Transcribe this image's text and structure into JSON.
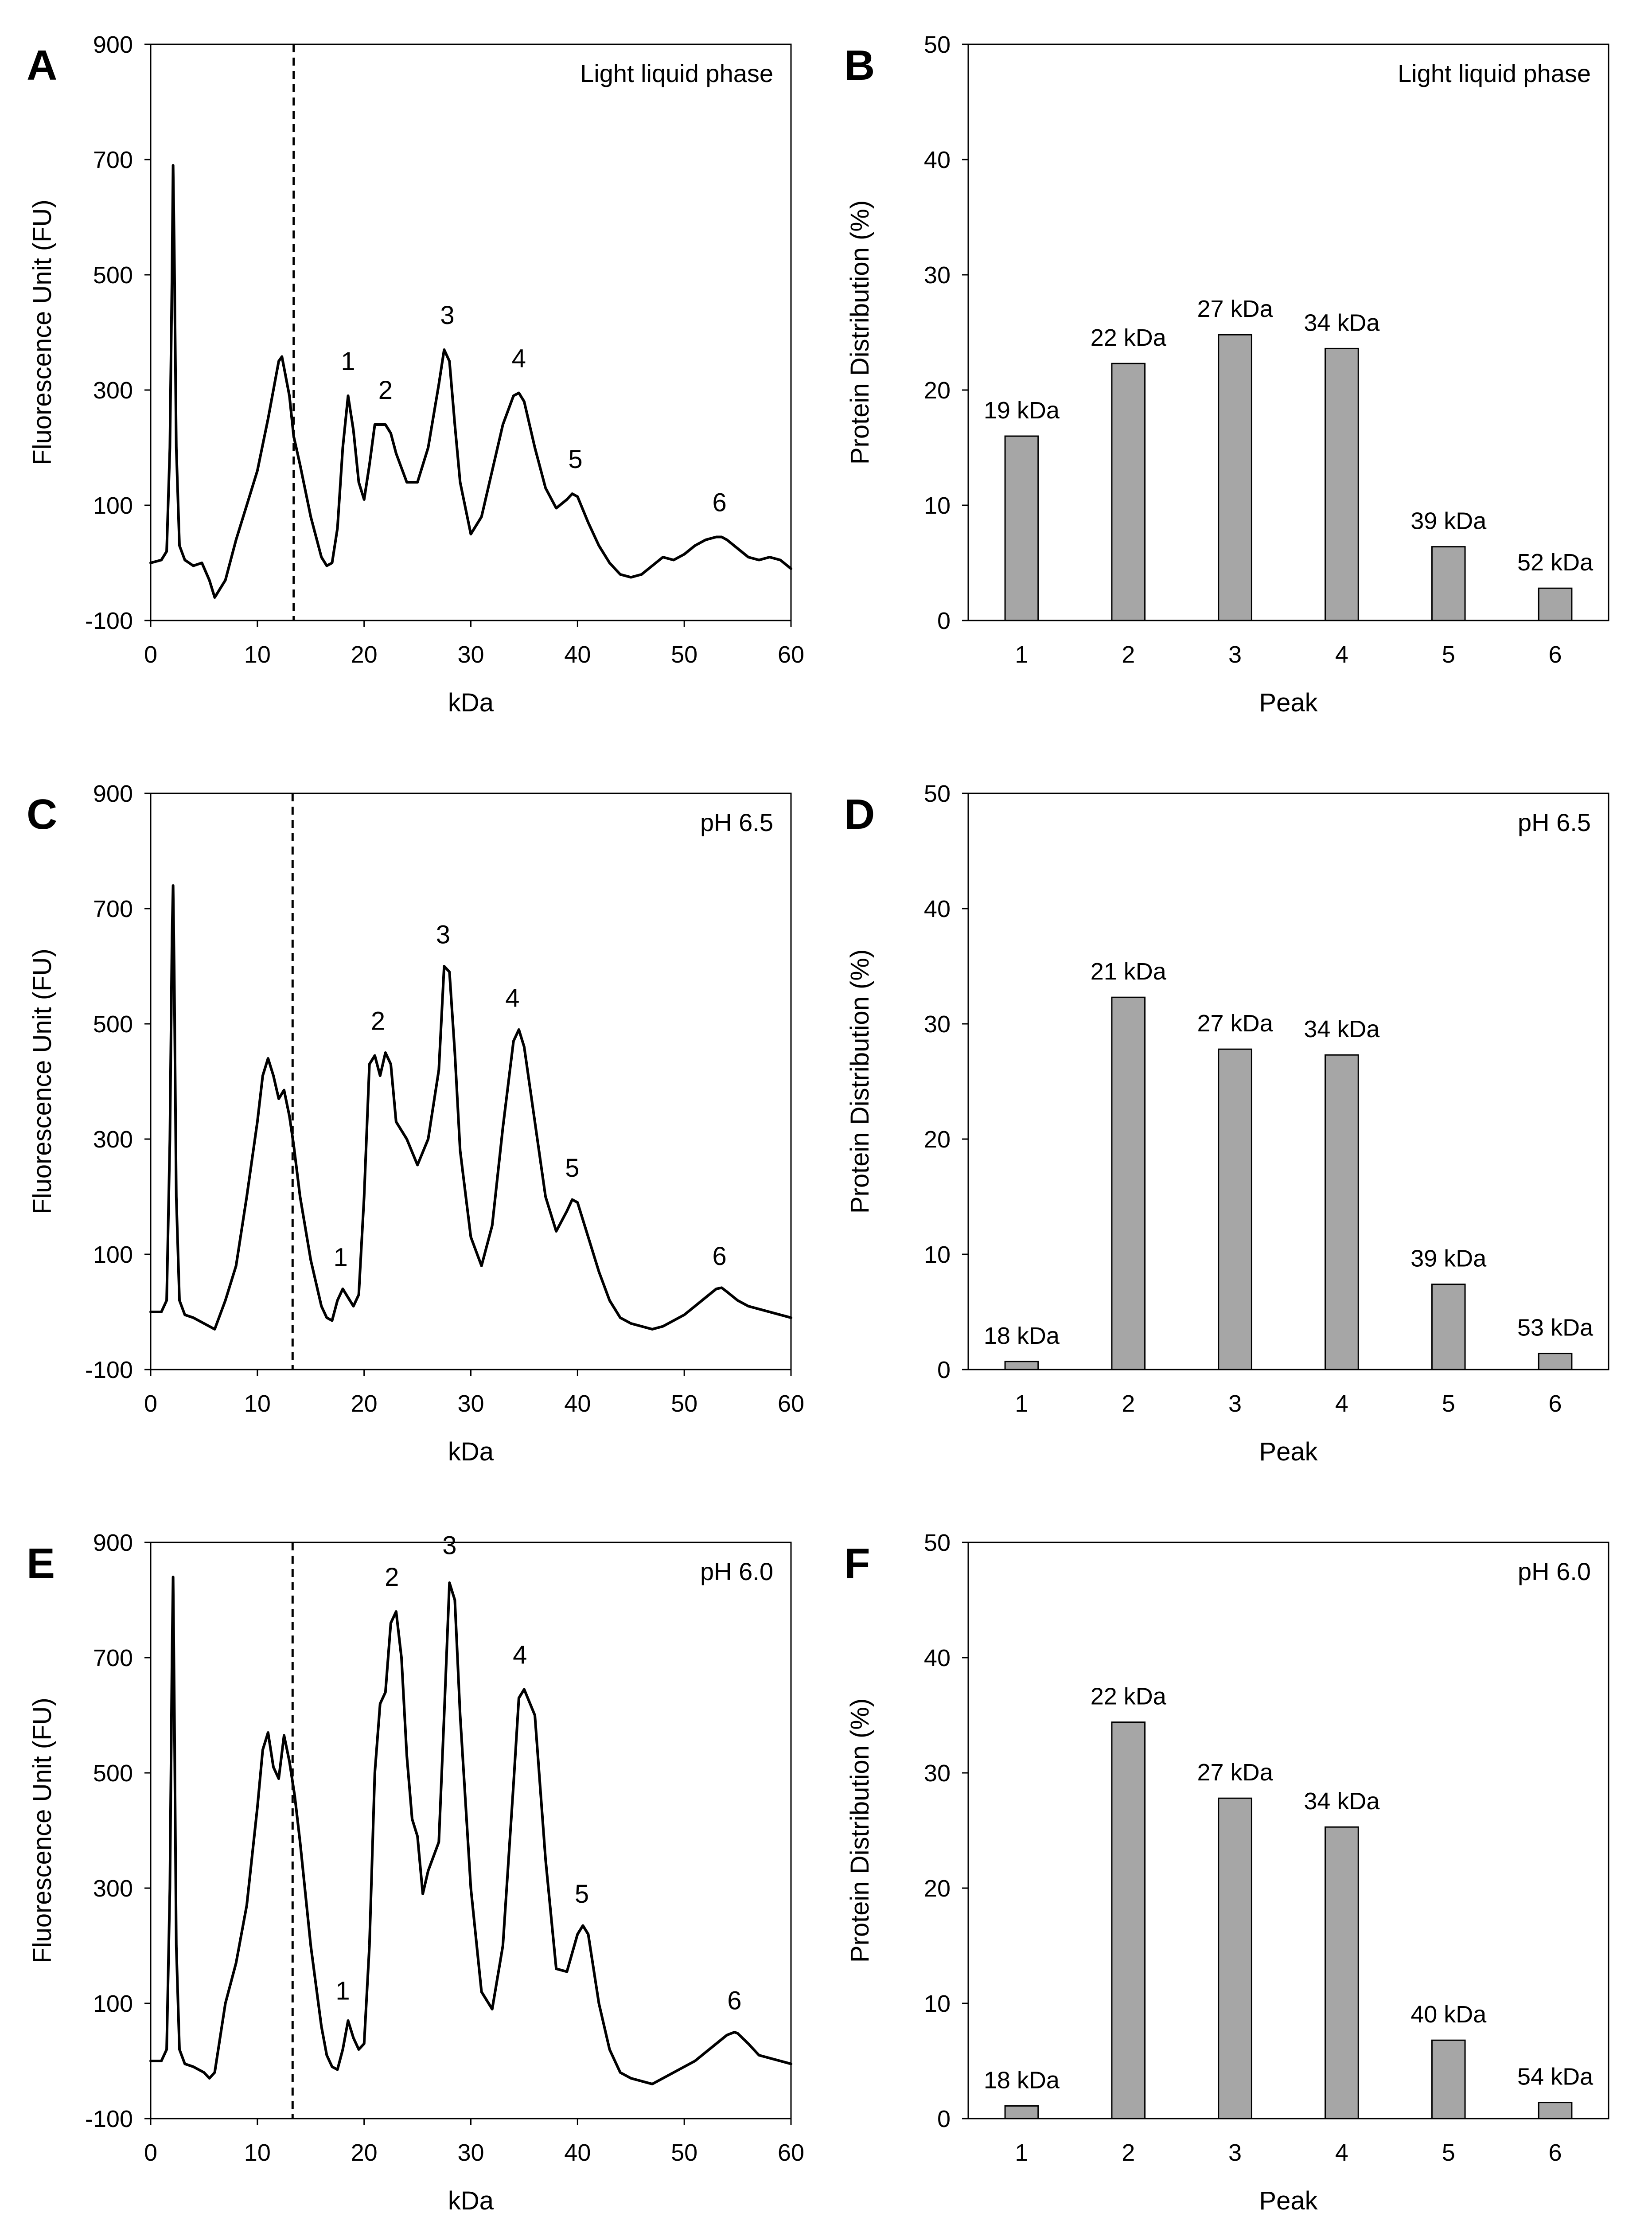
{
  "figure": {
    "panels_order": [
      "A",
      "B",
      "C",
      "D",
      "E",
      "F"
    ]
  },
  "chart_data": [
    {
      "panel": "A",
      "type": "line",
      "annotation": "Light liquid phase",
      "xlabel": "kDa",
      "ylabel": "Fluorescence Unit (FU)",
      "xlim": [
        0,
        60
      ],
      "ylim": [
        -100,
        900
      ],
      "xticks": [
        0,
        10,
        20,
        30,
        40,
        50,
        60
      ],
      "yticks": [
        -100,
        100,
        300,
        500,
        700,
        900
      ],
      "marker_x": 13.4,
      "series": [
        {
          "name": "Light liquid phase",
          "x": [
            0,
            1,
            1.5,
            1.8,
            2.0,
            2.1,
            2.2,
            2.4,
            2.7,
            3.2,
            4,
            4.8,
            5.5,
            6,
            7,
            8,
            9,
            10,
            11,
            12,
            12.3,
            13,
            13.4,
            14,
            15,
            16,
            16.5,
            17,
            17.5,
            18,
            18.5,
            19,
            19.5,
            20,
            20.5,
            21,
            21.5,
            22,
            22.5,
            23,
            24,
            25,
            26,
            27,
            27.5,
            28,
            28.5,
            29,
            30,
            31,
            32,
            33,
            34,
            34.5,
            35,
            36,
            37,
            38,
            39,
            39.5,
            40,
            41,
            42,
            43,
            44,
            45,
            46,
            47,
            48,
            49,
            50,
            51,
            52,
            53,
            53.5,
            54,
            55,
            56,
            57,
            58,
            59,
            60
          ],
          "y": [
            0,
            5,
            20,
            200,
            500,
            690,
            560,
            200,
            30,
            5,
            -5,
            0,
            -30,
            -60,
            -30,
            40,
            100,
            160,
            250,
            350,
            358,
            290,
            220,
            170,
            80,
            10,
            -5,
            0,
            60,
            200,
            290,
            230,
            140,
            110,
            170,
            240,
            240,
            240,
            225,
            190,
            140,
            140,
            200,
            310,
            370,
            350,
            240,
            140,
            50,
            80,
            160,
            240,
            290,
            295,
            280,
            200,
            130,
            95,
            110,
            120,
            115,
            70,
            30,
            0,
            -20,
            -25,
            -20,
            -5,
            10,
            5,
            15,
            30,
            40,
            45,
            45,
            40,
            25,
            10,
            5,
            10,
            5,
            -10
          ]
        }
      ],
      "peak_labels": [
        {
          "label": "1",
          "x": 18.5,
          "y": 300
        },
        {
          "label": "2",
          "x": 22,
          "y": 250
        },
        {
          "label": "3",
          "x": 27.8,
          "y": 380
        },
        {
          "label": "4",
          "x": 34.5,
          "y": 305
        },
        {
          "label": "5",
          "x": 39.8,
          "y": 130
        },
        {
          "label": "6",
          "x": 53.3,
          "y": 55
        }
      ]
    },
    {
      "panel": "B",
      "type": "bar",
      "annotation": "Light liquid phase",
      "xlabel": "Peak",
      "ylabel": "Protein Distribution (%)",
      "ylim": [
        0,
        50
      ],
      "yticks": [
        0,
        10,
        20,
        30,
        40,
        50
      ],
      "categories": [
        "1",
        "2",
        "3",
        "4",
        "5",
        "6"
      ],
      "values": [
        16,
        22.3,
        24.8,
        23.6,
        6.4,
        2.8
      ],
      "data_labels": [
        "19 kDa",
        "22 kDa",
        "27 kDa",
        "34 kDa",
        "39 kDa",
        "52 kDa"
      ],
      "bar_color": "#a6a6a6"
    },
    {
      "panel": "C",
      "type": "line",
      "annotation": "pH 6.5",
      "xlabel": "kDa",
      "ylabel": "Fluorescence Unit (FU)",
      "xlim": [
        0,
        60
      ],
      "ylim": [
        -100,
        900
      ],
      "xticks": [
        0,
        10,
        20,
        30,
        40,
        50,
        60
      ],
      "yticks": [
        -100,
        100,
        300,
        500,
        700,
        900
      ],
      "marker_x": 13.3,
      "series": [
        {
          "name": "pH 6.5",
          "x": [
            0,
            1,
            1.5,
            1.8,
            2.0,
            2.1,
            2.2,
            2.4,
            2.7,
            3.2,
            4,
            5,
            6,
            7,
            8,
            9,
            10,
            10.5,
            11,
            11.5,
            12,
            12.5,
            13,
            13.4,
            14,
            15,
            16,
            16.5,
            17,
            17.5,
            18,
            18.5,
            19,
            19.5,
            20,
            20.5,
            21,
            21.5,
            22,
            22.5,
            23,
            24,
            25,
            26,
            27,
            27.5,
            28,
            28.5,
            29,
            30,
            31,
            32,
            33,
            34,
            34.5,
            35,
            36,
            37,
            38,
            39,
            39.5,
            40,
            41,
            42,
            43,
            44,
            45,
            46,
            47,
            48,
            49,
            50,
            51,
            52,
            53,
            53.5,
            54,
            55,
            56,
            57,
            58,
            59,
            60
          ],
          "y": [
            0,
            0,
            20,
            300,
            650,
            740,
            600,
            200,
            20,
            -5,
            -10,
            -20,
            -30,
            20,
            80,
            200,
            330,
            410,
            440,
            410,
            370,
            385,
            340,
            290,
            200,
            90,
            10,
            -10,
            -15,
            20,
            40,
            25,
            10,
            30,
            200,
            430,
            445,
            410,
            450,
            430,
            330,
            300,
            255,
            300,
            420,
            600,
            590,
            450,
            280,
            130,
            80,
            150,
            320,
            470,
            490,
            460,
            330,
            200,
            140,
            175,
            195,
            190,
            130,
            70,
            20,
            -10,
            -20,
            -25,
            -30,
            -25,
            -15,
            -5,
            10,
            25,
            40,
            42,
            35,
            20,
            10,
            5,
            0,
            -5,
            -10
          ]
        }
      ],
      "peak_labels": [
        {
          "label": "1",
          "x": 17.8,
          "y": 45
        },
        {
          "label": "2",
          "x": 21.3,
          "y": 455
        },
        {
          "label": "3",
          "x": 27.4,
          "y": 605
        },
        {
          "label": "4",
          "x": 33.9,
          "y": 495
        },
        {
          "label": "5",
          "x": 39.5,
          "y": 200
        },
        {
          "label": "6",
          "x": 53.3,
          "y": 47
        }
      ]
    },
    {
      "panel": "D",
      "type": "bar",
      "annotation": "pH 6.5",
      "xlabel": "Peak",
      "ylabel": "Protein Distribution (%)",
      "ylim": [
        0,
        50
      ],
      "yticks": [
        0,
        10,
        20,
        30,
        40,
        50
      ],
      "categories": [
        "1",
        "2",
        "3",
        "4",
        "5",
        "6"
      ],
      "values": [
        0.7,
        32.3,
        27.8,
        27.3,
        7.4,
        1.4
      ],
      "data_labels": [
        "18 kDa",
        "21 kDa",
        "27 kDa",
        "34 kDa",
        "39 kDa",
        "53 kDa"
      ],
      "bar_color": "#a6a6a6"
    },
    {
      "panel": "E",
      "type": "line",
      "annotation": "pH 6.0",
      "xlabel": "kDa",
      "ylabel": "Fluorescence Unit (FU)",
      "xlim": [
        0,
        60
      ],
      "ylim": [
        -100,
        900
      ],
      "xticks": [
        0,
        10,
        20,
        30,
        40,
        50,
        60
      ],
      "yticks": [
        -100,
        100,
        300,
        500,
        700,
        900
      ],
      "marker_x": 13.3,
      "series": [
        {
          "name": "pH 6.0",
          "x": [
            0,
            1,
            1.5,
            1.8,
            2.0,
            2.1,
            2.2,
            2.4,
            2.7,
            3.2,
            4,
            5,
            5.5,
            6,
            7,
            8,
            9,
            10,
            10.5,
            11,
            11.5,
            12,
            12.5,
            13,
            13.5,
            14,
            15,
            16,
            16.5,
            17,
            17.5,
            18,
            18.5,
            19,
            19.5,
            20,
            20.5,
            21,
            21.5,
            22,
            22.5,
            23,
            23.5,
            24,
            24.5,
            25,
            25.5,
            26,
            27,
            27.5,
            28,
            28.5,
            29,
            30,
            31,
            32,
            33,
            34,
            34.5,
            35,
            36,
            37,
            38,
            39,
            40,
            40.5,
            41,
            42,
            43,
            44,
            45,
            46,
            47,
            48,
            49,
            50,
            51,
            52,
            53,
            54,
            54.7,
            55,
            56,
            57,
            58,
            59,
            60
          ],
          "y": [
            0,
            0,
            20,
            300,
            700,
            840,
            650,
            200,
            20,
            -5,
            -10,
            -20,
            -30,
            -20,
            100,
            170,
            270,
            440,
            540,
            570,
            510,
            490,
            565,
            520,
            460,
            380,
            200,
            60,
            10,
            -10,
            -15,
            20,
            70,
            40,
            20,
            30,
            200,
            500,
            620,
            640,
            760,
            780,
            700,
            530,
            420,
            390,
            290,
            330,
            380,
            600,
            830,
            800,
            600,
            300,
            120,
            90,
            200,
            480,
            630,
            645,
            600,
            350,
            160,
            155,
            220,
            235,
            220,
            100,
            20,
            -20,
            -30,
            -35,
            -40,
            -30,
            -20,
            -10,
            0,
            15,
            30,
            45,
            50,
            48,
            30,
            10,
            5,
            0,
            -5
          ]
        }
      ],
      "peak_labels": [
        {
          "label": "1",
          "x": 18.0,
          "y": 72
        },
        {
          "label": "2",
          "x": 22.6,
          "y": 790
        },
        {
          "label": "3",
          "x": 28.0,
          "y": 845
        },
        {
          "label": "4",
          "x": 34.6,
          "y": 655
        },
        {
          "label": "5",
          "x": 40.4,
          "y": 240
        },
        {
          "label": "6",
          "x": 54.7,
          "y": 55
        }
      ]
    },
    {
      "panel": "F",
      "type": "bar",
      "annotation": "pH 6.0",
      "xlabel": "Peak",
      "ylabel": "Protein Distribution (%)",
      "ylim": [
        0,
        50
      ],
      "yticks": [
        0,
        10,
        20,
        30,
        40,
        50
      ],
      "categories": [
        "1",
        "2",
        "3",
        "4",
        "5",
        "6"
      ],
      "values": [
        1.1,
        34.4,
        27.8,
        25.3,
        6.8,
        1.4
      ],
      "data_labels": [
        "18 kDa",
        "22 kDa",
        "27 kDa",
        "34 kDa",
        "40 kDa",
        "54 kDa"
      ],
      "bar_color": "#a6a6a6"
    }
  ]
}
